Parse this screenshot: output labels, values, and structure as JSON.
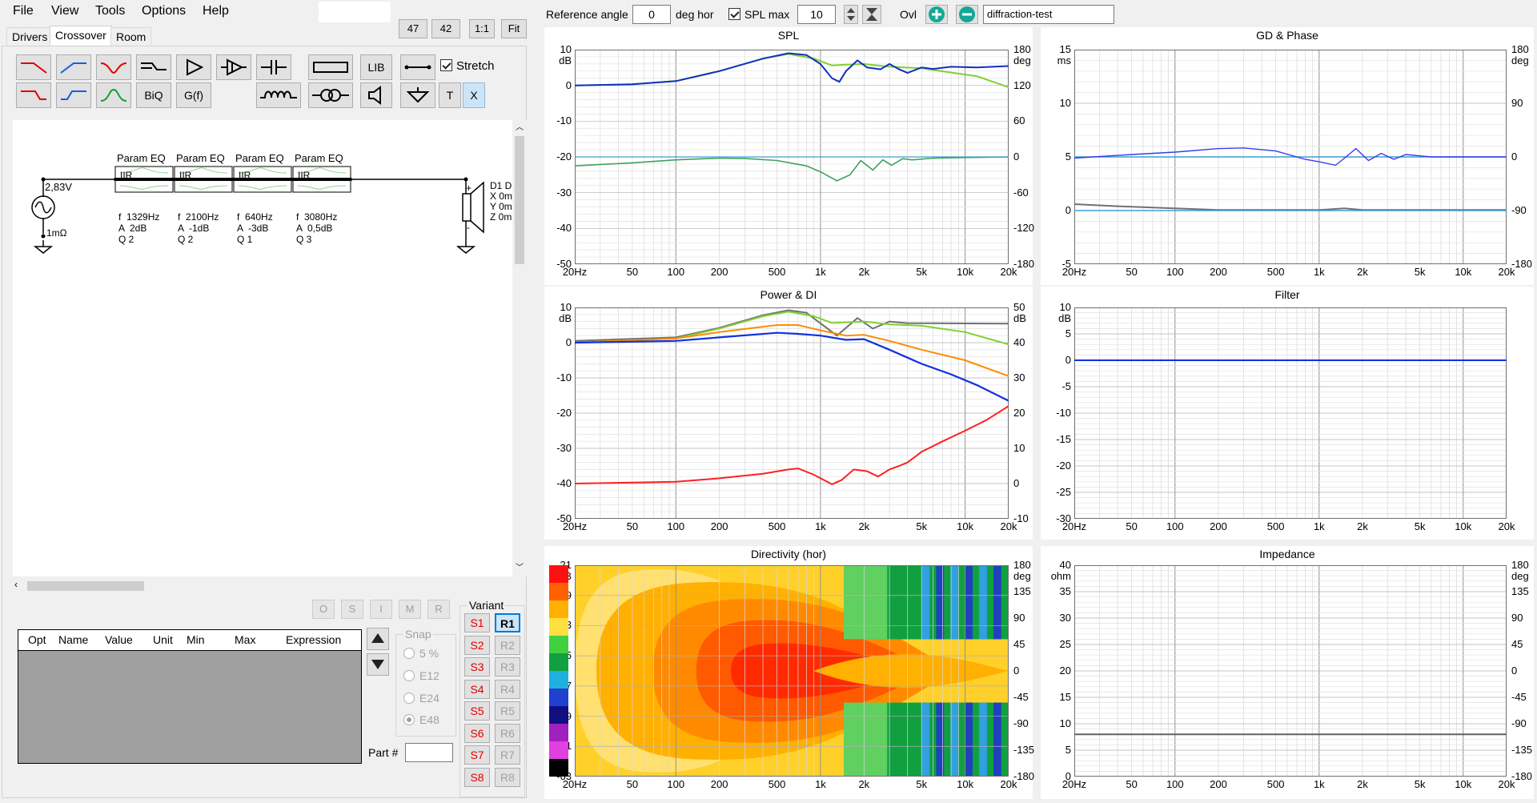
{
  "menu": {
    "file": "File",
    "view": "View",
    "tools": "Tools",
    "options": "Options",
    "help": "Help"
  },
  "zoom": {
    "z47": "47",
    "z42": "42",
    "z11": "1:1",
    "fit": "Fit"
  },
  "tabs": [
    "Drivers",
    "Crossover",
    "Room"
  ],
  "toolbar": {
    "biq": "BiQ",
    "gf": "G(f)",
    "lib": "LIB",
    "t": "T",
    "x": "X",
    "stretch": "Stretch"
  },
  "schematic": {
    "voltage": "2,83V",
    "resistance": "1mΩ",
    "eqs": [
      {
        "label": "Param EQ",
        "type": "IIR",
        "f": "f  1329Hz",
        "a": "A  2dB",
        "q": "Q 2"
      },
      {
        "label": "Param EQ",
        "type": "IIR",
        "f": "f  2100Hz",
        "a": "A  -1dB",
        "q": "Q 2"
      },
      {
        "label": "Param EQ",
        "type": "IIR",
        "f": "f  640Hz",
        "a": "A  -3dB",
        "q": "Q 1"
      },
      {
        "label": "Param EQ",
        "type": "IIR",
        "f": "f  3080Hz",
        "a": "A  0,5dB",
        "q": "Q 3"
      }
    ],
    "driver": {
      "name": "D1 D",
      "x": "X 0m",
      "y": "Y 0m",
      "z": "Z 0m",
      "plus": "+",
      "minus": "-"
    }
  },
  "smallbtns": [
    "O",
    "S",
    "I",
    "M",
    "R"
  ],
  "variant": {
    "title": "Variant",
    "s": [
      "S1",
      "S2",
      "S3",
      "S4",
      "S5",
      "S6",
      "S7",
      "S8"
    ],
    "r": [
      "R1",
      "R2",
      "R3",
      "R4",
      "R5",
      "R6",
      "R7",
      "R8"
    ]
  },
  "table": {
    "headers": [
      "Opt",
      "Name",
      "Value",
      "Unit",
      "Min",
      "Max",
      "Expression"
    ]
  },
  "snap": {
    "title": "Snap",
    "options": [
      "5 %",
      "E12",
      "E24",
      "E48"
    ]
  },
  "part": {
    "label": "Part #",
    "value": ""
  },
  "topbar": {
    "ref_angle_label": "Reference angle",
    "ref_angle": "0",
    "deg_hor": "deg hor",
    "spl_max_label": "SPL max",
    "spl_max": "10",
    "ovl": "Ovl",
    "project": "diffraction-test"
  },
  "xticks": [
    "20Hz",
    "50",
    "100",
    "200",
    "500",
    "1k",
    "2k",
    "5k",
    "10k",
    "20k"
  ],
  "plots": {
    "spl": {
      "title": "SPL",
      "lunit": "dB",
      "runit": "deg",
      "left": [
        "10",
        "0",
        "-10",
        "-20",
        "-30",
        "-40",
        "-50"
      ],
      "right": [
        "180",
        "120",
        "60",
        "0",
        "-60",
        "-120",
        "-180"
      ]
    },
    "gd": {
      "title": "GD & Phase",
      "lunit": "ms",
      "runit": "deg",
      "left": [
        "15",
        "10",
        "5",
        "0",
        "-5"
      ],
      "right": [
        "180",
        "90",
        "0",
        "-90",
        "-180"
      ]
    },
    "power": {
      "title": "Power & DI",
      "lunit": "dB",
      "runit": "dB",
      "left": [
        "10",
        "0",
        "-10",
        "-20",
        "-30",
        "-40",
        "-50"
      ],
      "right": [
        "50",
        "40",
        "30",
        "20",
        "10",
        "0",
        "-10"
      ]
    },
    "filter": {
      "title": "Filter",
      "lunit": "dB",
      "left": [
        "10",
        "5",
        "0",
        "-5",
        "-10",
        "-15",
        "-20",
        "-25",
        "-30"
      ]
    },
    "dir": {
      "title": "Directivity (hor)",
      "lunit": "dB",
      "runit": "deg",
      "left": [
        "21",
        "9",
        "-3",
        "-15",
        "-27",
        "-39",
        "-51",
        "-63"
      ],
      "right": [
        "180",
        "135",
        "90",
        "45",
        "0",
        "-45",
        "-90",
        "-135",
        "-180"
      ]
    },
    "imp": {
      "title": "Impedance",
      "lunit": "ohm",
      "runit": "deg",
      "left": [
        "40",
        "35",
        "30",
        "25",
        "20",
        "15",
        "10",
        "5",
        "0"
      ],
      "right": [
        "180",
        "135",
        "90",
        "45",
        "0",
        "-45",
        "-90",
        "-135",
        "-180"
      ]
    }
  },
  "colors": {
    "spl_main": "#1030c0",
    "spl_green": "#80d030",
    "phase": "#40a060",
    "power": "#1030e0",
    "di": "#ff2020",
    "orange": "#ff8c00",
    "grey": "#707070"
  }
}
